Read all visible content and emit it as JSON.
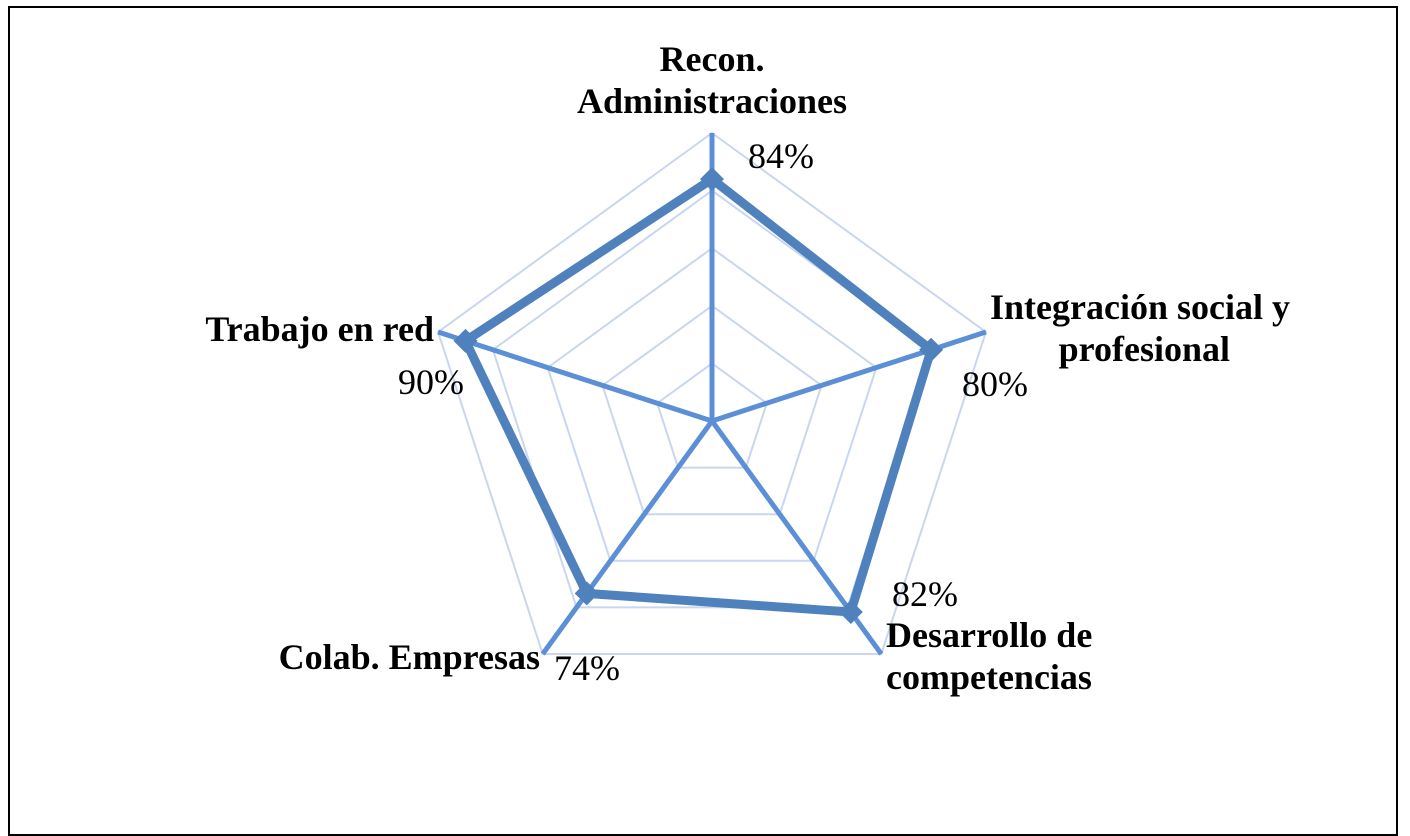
{
  "chart_data": {
    "type": "radar",
    "categories": [
      "Recon. Administraciones",
      "Integración social y profesional",
      "Desarrollo de competencias",
      "Colab. Empresas",
      "Trabajo en red"
    ],
    "category_lines": [
      [
        "Recon.",
        "Administraciones"
      ],
      [
        "Integración social y",
        "profesional"
      ],
      [
        "Desarrollo de",
        "competencias"
      ],
      [
        "Colab. Empresas"
      ],
      [
        "Trabajo en red"
      ]
    ],
    "series": [
      {
        "values": [
          84,
          80,
          82,
          74,
          90
        ],
        "color": "#4F81BD"
      }
    ],
    "data_labels": [
      "84%",
      "80%",
      "82%",
      "74%",
      "90%"
    ],
    "rlim": [
      0,
      100
    ],
    "grid": true,
    "legend": "none",
    "axis_color": "#5B8FD6",
    "grid_color": "#C9D6EE"
  }
}
